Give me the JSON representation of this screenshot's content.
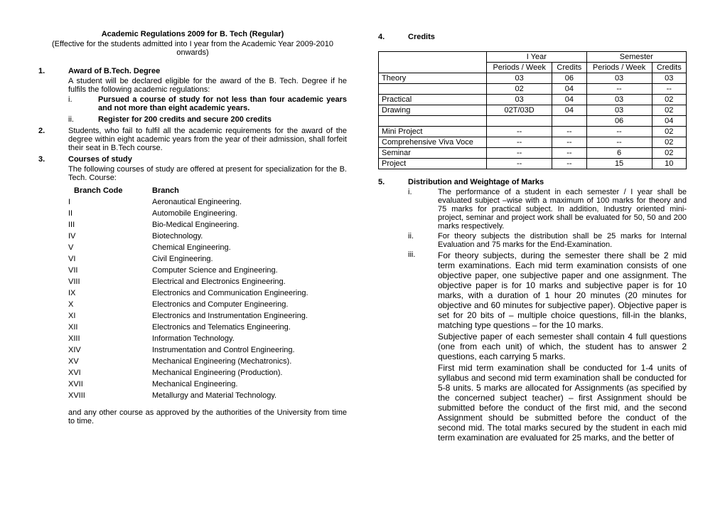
{
  "header": {
    "title": "Academic Regulations 2009 for B. Tech (Regular)",
    "subtitle": "(Effective for the students admitted into I year from the Academic Year 2009-2010 onwards)"
  },
  "left": {
    "s1": {
      "num": "1.",
      "heading": "Award of B.Tech. Degree",
      "body": "A student will be declared eligible for the award of the B. Tech. Degree if he fulfils the following academic regulations:",
      "i_label": "i.",
      "i_text": "Pursued a course of study for not less than four academic years and not more than eight academic years.",
      "ii_label": "ii.",
      "ii_text": "Register for 200 credits and secure 200 credits"
    },
    "s2": {
      "num": "2.",
      "body": "Students, who fail to fulfil all the academic requirements for the award of the degree within eight academic years from the year of their admission, shall forfeit their seat in B.Tech course."
    },
    "s3": {
      "num": "3.",
      "heading": "Courses of study",
      "body": "The following courses of study are offered at present for specialization for the B. Tech. Course:",
      "col1": "Branch Code",
      "col2": "Branch",
      "branches": [
        {
          "code": "I",
          "name": "Aeronautical Engineering."
        },
        {
          "code": "II",
          "name": "Automobile Engineering."
        },
        {
          "code": "III",
          "name": "Bio-Medical Engineering."
        },
        {
          "code": "IV",
          "name": "Biotechnology."
        },
        {
          "code": "V",
          "name": "Chemical Engineering."
        },
        {
          "code": "VI",
          "name": "Civil Engineering."
        },
        {
          "code": "VII",
          "name": "Computer Science and Engineering."
        },
        {
          "code": "VIII",
          "name": "Electrical and Electronics Engineering."
        },
        {
          "code": "IX",
          "name": "Electronics and Communication Engineering."
        },
        {
          "code": "X",
          "name": "Electronics and Computer Engineering."
        },
        {
          "code": "XI",
          "name": "Electronics and Instrumentation Engineering."
        },
        {
          "code": "XII",
          "name": "Electronics and Telematics Engineering."
        },
        {
          "code": "XIII",
          "name": "Information Technology."
        },
        {
          "code": "XIV",
          "name": "Instrumentation and Control Engineering."
        },
        {
          "code": "XV",
          "name": "Mechanical Engineering (Mechatronics)."
        },
        {
          "code": "XVI",
          "name": "Mechanical Engineering (Production)."
        },
        {
          "code": "XVII",
          "name": "Mechanical Engineering."
        },
        {
          "code": "XVIII",
          "name": "Metallurgy and Material Technology."
        }
      ],
      "note": "and any other course as approved by the authorities of the University from time to time."
    }
  },
  "right": {
    "s4": {
      "num": "4.",
      "heading": "Credits"
    },
    "credits_table": {
      "headers": {
        "blank": "",
        "iyear": "I Year",
        "semester": "Semester",
        "periods_week": "Periods / Week",
        "credits": "Credits",
        "periods_week2": "Periods / Week",
        "credits2": "Credits"
      },
      "rows": [
        {
          "label": "Theory",
          "c1": "03",
          "c2": "06",
          "c3": "03",
          "c4": "03"
        },
        {
          "label": "",
          "c1": "02",
          "c2": "04",
          "c3": "--",
          "c4": "--"
        },
        {
          "label": "Practical",
          "c1": "03",
          "c2": "04",
          "c3": "03",
          "c4": "02"
        },
        {
          "label": "Drawing",
          "c1": "02T/03D",
          "c2": "04",
          "c3": "03",
          "c4": "02"
        },
        {
          "label": "",
          "c1": "",
          "c2": "",
          "c3": "06",
          "c4": "04"
        },
        {
          "label": "Mini Project",
          "c1": "--",
          "c2": "--",
          "c3": "--",
          "c4": "02"
        },
        {
          "label": "Comprehensive Viva Voce",
          "c1": "--",
          "c2": "--",
          "c3": "--",
          "c4": "02"
        },
        {
          "label": "Seminar",
          "c1": "--",
          "c2": "--",
          "c3": "6",
          "c4": "02"
        },
        {
          "label": "Project",
          "c1": "--",
          "c2": "--",
          "c3": "15",
          "c4": "10"
        }
      ]
    },
    "s5": {
      "num": "5.",
      "heading": "Distribution and Weightage of Marks",
      "i_label": "i.",
      "i_text": "The performance of a student in each semester / I year shall be evaluated subject –wise with a maximum of 100 marks for theory and 75 marks for practical subject. In addition, Industry oriented mini-project, seminar and project work shall be evaluated for 50, 50 and 200 marks respectively.",
      "ii_label": "ii.",
      "ii_text": "For theory subjects the distribution shall be 25 marks for Internal Evaluation and 75 marks for the End-Examination.",
      "iii_label": "iii.",
      "iii_p1": "For theory subjects, during the semester there shall be 2 mid term examinations. Each mid term examination consists of one objective paper, one subjective paper and one assignment.  The objective paper is for 10 marks and subjective paper is for 10 marks, with a duration of 1 hour 20 minutes (20 minutes for objective and 60 minutes for subjective paper).  Objective paper is set for 20 bits of – multiple choice questions, fill-in the blanks, matching type questions – for the 10 marks.",
      "iii_p2": "Subjective paper of each semester shall contain 4 full questions (one from each unit) of which, the student has to answer 2 questions, each carrying 5 marks.",
      "iii_p3": "First mid term examination shall be conducted for 1-4 units of syllabus and second mid term examination shall be conducted for 5-8 units.  5 marks are allocated for Assignments (as specified by the concerned subject teacher) – first Assignment should be submitted before the conduct of the first mid, and the second Assignment should be submitted before the conduct of the second mid.  The total marks secured by the student in each mid term examination are evaluated for 25 marks, and the better of"
    }
  }
}
